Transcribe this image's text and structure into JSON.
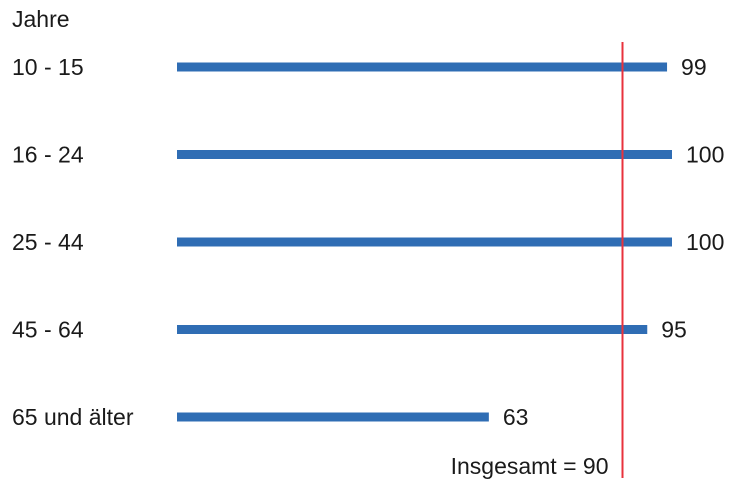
{
  "chart_data": {
    "type": "bar",
    "orientation": "horizontal",
    "category_axis_label": "Jahre",
    "categories": [
      "10 - 15",
      "16 - 24",
      "25 - 44",
      "45 - 64",
      "65 und älter"
    ],
    "values": [
      99,
      100,
      100,
      95,
      63
    ],
    "xlim": [
      0,
      100
    ],
    "bar_color": "#2f6db4",
    "reference_line": {
      "value": 90,
      "label": "Insgesamt = 90",
      "color": "#e8323c"
    },
    "grid": false,
    "legend": "none"
  }
}
